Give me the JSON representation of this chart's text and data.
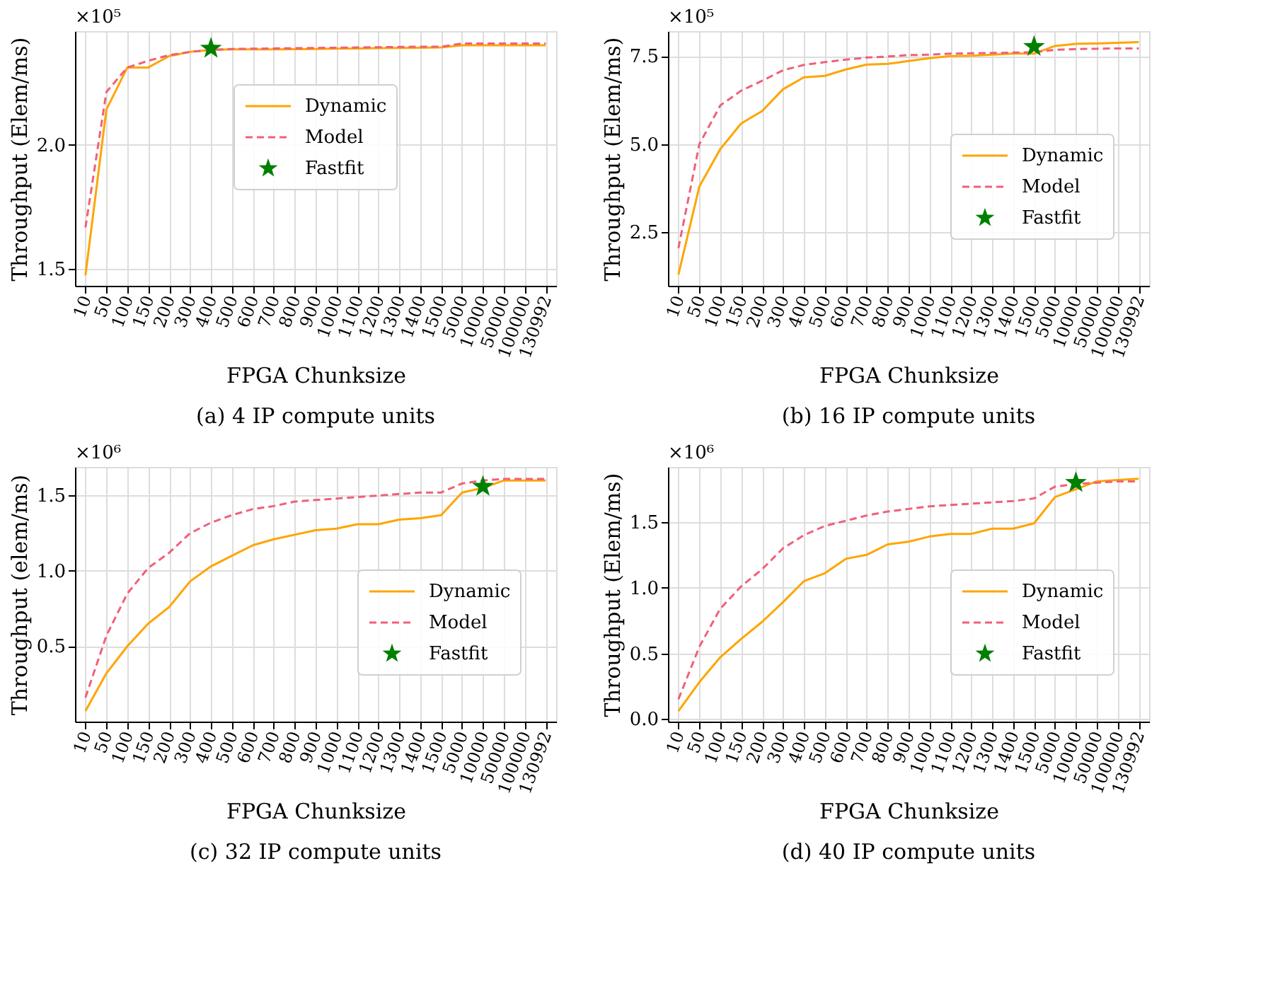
{
  "chart_data": [
    {
      "type": "line",
      "title": "(a) 4 IP compute units",
      "xlabel": "FPGA Chunksize",
      "ylabel": "Throughput (Elem/ms)",
      "annotations": [
        "×10⁵"
      ],
      "categories": [
        "10",
        "50",
        "100",
        "150",
        "200",
        "300",
        "400",
        "500",
        "600",
        "700",
        "800",
        "900",
        "1000",
        "1100",
        "1200",
        "1300",
        "1400",
        "1500",
        "5000",
        "10000",
        "50000",
        "100000",
        "130992"
      ],
      "series": [
        {
          "name": "Dynamic",
          "color": "#ffa500",
          "line_style": "solid",
          "values": [
            1.473,
            2.143,
            2.313,
            2.313,
            2.359,
            2.376,
            2.384,
            2.386,
            2.386,
            2.386,
            2.387,
            2.388,
            2.389,
            2.39,
            2.391,
            2.392,
            2.393,
            2.394,
            2.403,
            2.403,
            2.403,
            2.403,
            2.403
          ]
        },
        {
          "name": "Model",
          "color": "#f0607a",
          "line_style": "dashed",
          "values": [
            1.666,
            2.214,
            2.313,
            2.34,
            2.363,
            2.376,
            2.384,
            2.388,
            2.389,
            2.39,
            2.391,
            2.392,
            2.393,
            2.394,
            2.395,
            2.396,
            2.397,
            2.397,
            2.41,
            2.41,
            2.41,
            2.41,
            2.41
          ]
        },
        {
          "name": "Fastfit",
          "type": "scatter",
          "color": "#008000",
          "marker": "star",
          "x": [
            "400"
          ],
          "values": [
            2.39
          ]
        }
      ],
      "ylim": [
        1.43,
        2.46
      ],
      "yticks": [
        1.5,
        {
          "value": 2,
          "label": "2.0"
        }
      ],
      "grid": true,
      "legend": "center"
    },
    {
      "type": "line",
      "title": "(b) 16 IP compute units",
      "xlabel": "FPGA Chunksize",
      "ylabel": "Throughput (Elem/ms)",
      "annotations": [
        "×10⁵"
      ],
      "categories": [
        "10",
        "50",
        "100",
        "150",
        "200",
        "300",
        "400",
        "500",
        "600",
        "700",
        "800",
        "900",
        "1000",
        "1100",
        "1200",
        "1300",
        "1400",
        "1500",
        "5000",
        "10000",
        "50000",
        "100000",
        "130992"
      ],
      "series": [
        {
          "name": "Dynamic",
          "color": "#ffa500",
          "line_style": "solid",
          "values": [
            1.3,
            3.8,
            4.86,
            5.59,
            5.94,
            6.56,
            6.9,
            6.94,
            7.12,
            7.26,
            7.28,
            7.36,
            7.44,
            7.5,
            7.51,
            7.54,
            7.57,
            7.57,
            7.79,
            7.85,
            7.86,
            7.88,
            7.9
          ]
        },
        {
          "name": "Model",
          "color": "#f0607a",
          "line_style": "dashed",
          "values": [
            2.05,
            5.0,
            6.1,
            6.52,
            6.8,
            7.1,
            7.25,
            7.33,
            7.4,
            7.46,
            7.49,
            7.53,
            7.54,
            7.57,
            7.58,
            7.59,
            7.6,
            7.61,
            7.68,
            7.7,
            7.71,
            7.72,
            7.72
          ]
        },
        {
          "name": "Fastfit",
          "type": "scatter",
          "color": "#008000",
          "marker": "star",
          "values": [
            null,
            null,
            null,
            null,
            null,
            null,
            null,
            null,
            null,
            null,
            null,
            null,
            null,
            null,
            null,
            null,
            null,
            7.77,
            null,
            null,
            null,
            null,
            null
          ]
        }
      ],
      "ylim": [
        0.98,
        8.21
      ],
      "yticks": [
        2.5,
        {
          "value": 5,
          "label": "5.0"
        },
        7.5
      ],
      "grid": true,
      "legend": "right"
    },
    {
      "type": "line",
      "title": "(c) 32 IP compute units",
      "xlabel": "FPGA Chunksize",
      "ylabel": "Throughput (elem/ms)",
      "annotations": [
        "×10⁶"
      ],
      "categories": [
        "10",
        "50",
        "100",
        "150",
        "200",
        "300",
        "400",
        "500",
        "600",
        "700",
        "800",
        "900",
        "1000",
        "1100",
        "1200",
        "1300",
        "1400",
        "1500",
        "5000",
        "10000",
        "50000",
        "100000",
        "130992"
      ],
      "series": [
        {
          "name": "Dynamic",
          "color": "#ffa500",
          "line_style": "solid",
          "values": [
            0.07,
            0.32,
            0.5,
            0.65,
            0.76,
            0.93,
            1.03,
            1.1,
            1.17,
            1.21,
            1.24,
            1.27,
            1.28,
            1.31,
            1.31,
            1.34,
            1.35,
            1.37,
            1.52,
            1.55,
            1.6,
            1.6,
            1.6
          ]
        },
        {
          "name": "Model",
          "color": "#f0607a",
          "line_style": "dashed",
          "values": [
            0.16,
            0.57,
            0.85,
            1.02,
            1.12,
            1.25,
            1.32,
            1.37,
            1.41,
            1.43,
            1.46,
            1.47,
            1.48,
            1.49,
            1.5,
            1.51,
            1.52,
            1.52,
            1.58,
            1.6,
            1.61,
            1.61,
            1.61
          ]
        },
        {
          "name": "Fastfit",
          "type": "scatter",
          "color": "#008000",
          "marker": "star",
          "x": [
            "10000"
          ],
          "values": [
            1.56
          ]
        }
      ],
      "ylim": [
        0,
        1.69
      ],
      "yticks": [
        0.5,
        {
          "value": 1,
          "label": "1.0"
        },
        1.5
      ],
      "grid": true,
      "legend": "right"
    },
    {
      "type": "line",
      "title": "(d) 40 IP compute units",
      "xlabel": "FPGA Chunksize",
      "ylabel": "Throughput (Elem/ms)",
      "annotations": [
        "×10⁶"
      ],
      "categories": [
        "10",
        "50",
        "100",
        "150",
        "200",
        "300",
        "400",
        "500",
        "600",
        "700",
        "800",
        "900",
        "1000",
        "1100",
        "1200",
        "1300",
        "1400",
        "1500",
        "5000",
        "10000",
        "50000",
        "100000",
        "130992"
      ],
      "series": [
        {
          "name": "Dynamic",
          "color": "#ffa500",
          "line_style": "solid",
          "values": [
            0.06,
            0.28,
            0.47,
            0.61,
            0.74,
            0.89,
            1.05,
            1.11,
            1.22,
            1.25,
            1.33,
            1.35,
            1.39,
            1.41,
            1.41,
            1.45,
            1.45,
            1.49,
            1.69,
            1.75,
            1.81,
            1.82,
            1.83
          ]
        },
        {
          "name": "Model",
          "color": "#f0607a",
          "line_style": "dashed",
          "values": [
            0.15,
            0.55,
            0.84,
            1.01,
            1.14,
            1.3,
            1.4,
            1.47,
            1.51,
            1.55,
            1.58,
            1.6,
            1.62,
            1.63,
            1.64,
            1.65,
            1.66,
            1.68,
            1.77,
            1.79,
            1.8,
            1.81,
            1.81
          ]
        },
        {
          "name": "Fastfit",
          "type": "scatter",
          "color": "#008000",
          "marker": "star",
          "x": [
            "10000"
          ],
          "values": [
            1.8
          ]
        }
      ],
      "ylim": [
        -0.02,
        1.92
      ],
      "yticks": [
        {
          "value": 0,
          "label": "0.0"
        },
        0.5,
        {
          "value": 1,
          "label": "1.0"
        },
        1.5
      ],
      "grid": true,
      "legend": "right"
    }
  ]
}
